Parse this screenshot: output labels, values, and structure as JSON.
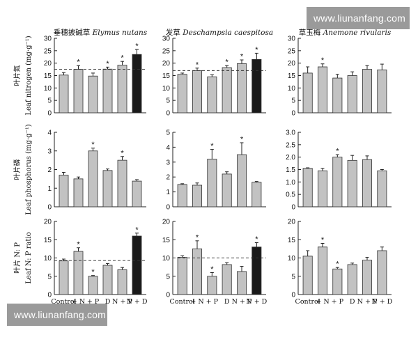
{
  "watermark": {
    "top": "www.liunanfang.com",
    "bottom": "www.liunanfang.com"
  },
  "x_categories": [
    "Control",
    "+ N",
    "+ P",
    "D",
    "N + P",
    "N + D"
  ],
  "species": [
    {
      "cn": "垂穗披碱草",
      "latin": "Elymus nutans"
    },
    {
      "cn": "发草",
      "latin": "Deschampsia caespitosa"
    },
    {
      "cn": "草玉梅",
      "latin": "Anemone rivularis"
    }
  ],
  "chart_data": [
    {
      "type": "bar",
      "row": 0,
      "col": 0,
      "title": "垂穗披碱草 Elymus nutans",
      "ylabel_cn": "叶片氮",
      "ylabel": "Leaf nitrogen (mg·g⁻¹)",
      "ylim": [
        0,
        30
      ],
      "yticks": [
        0,
        5,
        10,
        15,
        20,
        25,
        30
      ],
      "ytick_labels": [
        "0",
        "5",
        "10",
        "15",
        "20",
        "25",
        "30"
      ],
      "reference_line": 17.5,
      "categories": [
        "Control",
        "+ N",
        "+ P",
        "D",
        "N + P",
        "N + D"
      ],
      "values": [
        15.2,
        17.5,
        14.8,
        17.6,
        19.2,
        23.5
      ],
      "errors": [
        1.0,
        1.5,
        1.2,
        0.8,
        1.5,
        2.0
      ],
      "significant": [
        false,
        true,
        false,
        true,
        true,
        true
      ],
      "highlight": [
        false,
        false,
        false,
        false,
        false,
        true
      ]
    },
    {
      "type": "bar",
      "row": 0,
      "col": 1,
      "title": "发草 Deschampsia caespitosa",
      "ylim": [
        0,
        30
      ],
      "yticks": [
        0,
        5,
        10,
        15,
        20,
        25,
        30
      ],
      "ytick_labels": [
        "0",
        "5",
        "10",
        "15",
        "20",
        "25",
        "30"
      ],
      "reference_line": 17,
      "categories": [
        "Control",
        "+ N",
        "+ P",
        "D",
        "N + P",
        "N + D"
      ],
      "values": [
        15.5,
        17.0,
        14.5,
        18.2,
        19.8,
        21.5
      ],
      "errors": [
        0.5,
        1.0,
        0.8,
        0.8,
        1.5,
        2.5
      ],
      "significant": [
        false,
        true,
        false,
        true,
        true,
        true
      ],
      "highlight": [
        false,
        false,
        false,
        false,
        false,
        true
      ]
    },
    {
      "type": "bar",
      "row": 0,
      "col": 2,
      "title": "草玉梅 Anemone rivularis",
      "ylim": [
        0,
        30
      ],
      "yticks": [
        0,
        5,
        10,
        15,
        20,
        25,
        30
      ],
      "ytick_labels": [
        "0",
        "5",
        "10",
        "15",
        "20",
        "25",
        "30"
      ],
      "reference_line": null,
      "categories": [
        "Control",
        "+ N",
        "+ P",
        "D",
        "N + P",
        "N + D"
      ],
      "values": [
        16.0,
        18.5,
        14.0,
        15.0,
        17.5,
        17.3
      ],
      "errors": [
        2.5,
        1.2,
        1.5,
        1.5,
        1.5,
        2.3
      ],
      "significant": [
        false,
        true,
        false,
        false,
        false,
        false
      ],
      "highlight": [
        false,
        false,
        false,
        false,
        false,
        false
      ]
    },
    {
      "type": "bar",
      "row": 1,
      "col": 0,
      "ylabel_cn": "叶片磷",
      "ylabel": "Leaf phosphorus (mg·g⁻¹)",
      "ylim": [
        0,
        4
      ],
      "yticks": [
        0,
        1,
        2,
        3,
        4
      ],
      "ytick_labels": [
        "0",
        "1",
        "2",
        "3",
        "4"
      ],
      "reference_line": null,
      "categories": [
        "Control",
        "+ N",
        "+ P",
        "D",
        "N + P",
        "N + D"
      ],
      "values": [
        1.7,
        1.5,
        3.0,
        1.95,
        2.5,
        1.38
      ],
      "errors": [
        0.15,
        0.1,
        0.15,
        0.08,
        0.2,
        0.08
      ],
      "significant": [
        false,
        false,
        true,
        false,
        true,
        false
      ],
      "highlight": [
        false,
        false,
        false,
        false,
        false,
        false
      ]
    },
    {
      "type": "bar",
      "row": 1,
      "col": 1,
      "ylim": [
        0,
        5
      ],
      "yticks": [
        0,
        1,
        2,
        3,
        4,
        5
      ],
      "ytick_labels": [
        "0",
        "1",
        "2",
        "3",
        "4",
        "5"
      ],
      "reference_line": null,
      "categories": [
        "Control",
        "+ N",
        "+ P",
        "D",
        "N + P",
        "N + D"
      ],
      "values": [
        1.5,
        1.45,
        3.2,
        2.2,
        3.5,
        1.65
      ],
      "errors": [
        0.05,
        0.15,
        0.65,
        0.15,
        0.8,
        0.05
      ],
      "significant": [
        false,
        false,
        true,
        false,
        true,
        false
      ],
      "highlight": [
        false,
        false,
        false,
        false,
        false,
        false
      ]
    },
    {
      "type": "bar",
      "row": 1,
      "col": 2,
      "ylim": [
        0,
        3
      ],
      "yticks": [
        0,
        0.5,
        1,
        1.5,
        2,
        2.5,
        3
      ],
      "ytick_labels": [
        "0",
        "0.5",
        "1.0",
        "1.5",
        "2.0",
        "2.5",
        "3.0"
      ],
      "reference_line": null,
      "categories": [
        "Control",
        "+ N",
        "+ P",
        "D",
        "N + P",
        "N + D"
      ],
      "values": [
        1.55,
        1.45,
        2.0,
        1.87,
        1.9,
        1.45
      ],
      "errors": [
        0.02,
        0.1,
        0.1,
        0.2,
        0.15,
        0.05
      ],
      "significant": [
        false,
        false,
        true,
        false,
        false,
        false
      ],
      "highlight": [
        false,
        false,
        false,
        false,
        false,
        false
      ]
    },
    {
      "type": "bar",
      "row": 2,
      "col": 0,
      "ylabel_cn": "叶片 N: P",
      "ylabel": "Leaf N: P ratio",
      "ylim": [
        0,
        20
      ],
      "yticks": [
        0,
        5,
        10,
        15,
        20
      ],
      "ytick_labels": [
        "0",
        "5",
        "10",
        "15",
        "20"
      ],
      "reference_line": 9.3,
      "categories": [
        "Control",
        "+ N",
        "+ P",
        "D",
        "N + P",
        "N + D"
      ],
      "values": [
        9.2,
        11.8,
        5.0,
        8.0,
        6.8,
        16.0
      ],
      "errors": [
        0.5,
        1.0,
        0.2,
        0.5,
        0.6,
        0.8
      ],
      "significant": [
        false,
        true,
        true,
        false,
        false,
        true
      ],
      "highlight": [
        false,
        false,
        false,
        false,
        false,
        true
      ]
    },
    {
      "type": "bar",
      "row": 2,
      "col": 1,
      "ylim": [
        0,
        20
      ],
      "yticks": [
        0,
        5,
        10,
        15,
        20
      ],
      "ytick_labels": [
        "0",
        "5",
        "10",
        "15",
        "20"
      ],
      "reference_line": 10,
      "categories": [
        "Control",
        "+ N",
        "+ P",
        "D",
        "N + P",
        "N + D"
      ],
      "values": [
        10.2,
        12.5,
        5.0,
        8.2,
        6.3,
        13.0
      ],
      "errors": [
        0.4,
        2.2,
        1.0,
        0.5,
        1.4,
        1.2
      ],
      "significant": [
        false,
        true,
        true,
        false,
        false,
        true
      ],
      "highlight": [
        false,
        false,
        false,
        false,
        false,
        true
      ]
    },
    {
      "type": "bar",
      "row": 2,
      "col": 2,
      "ylim": [
        0,
        20
      ],
      "yticks": [
        0,
        5,
        10,
        15,
        20
      ],
      "ytick_labels": [
        "0",
        "5",
        "10",
        "15",
        "20"
      ],
      "reference_line": null,
      "categories": [
        "Control",
        "+ N",
        "+ P",
        "D",
        "N + P",
        "N + D"
      ],
      "values": [
        10.5,
        13.0,
        7.0,
        8.2,
        9.4,
        12.0
      ],
      "errors": [
        1.5,
        1.0,
        0.4,
        0.4,
        0.8,
        1.0
      ],
      "significant": [
        false,
        true,
        true,
        false,
        false,
        false
      ],
      "highlight": [
        false,
        false,
        false,
        false,
        false,
        false
      ]
    }
  ],
  "colors": {
    "bar": "#c2c2c2",
    "bar_highlight": "#1a1a1a",
    "axis": "#222222",
    "text": "#111111"
  }
}
